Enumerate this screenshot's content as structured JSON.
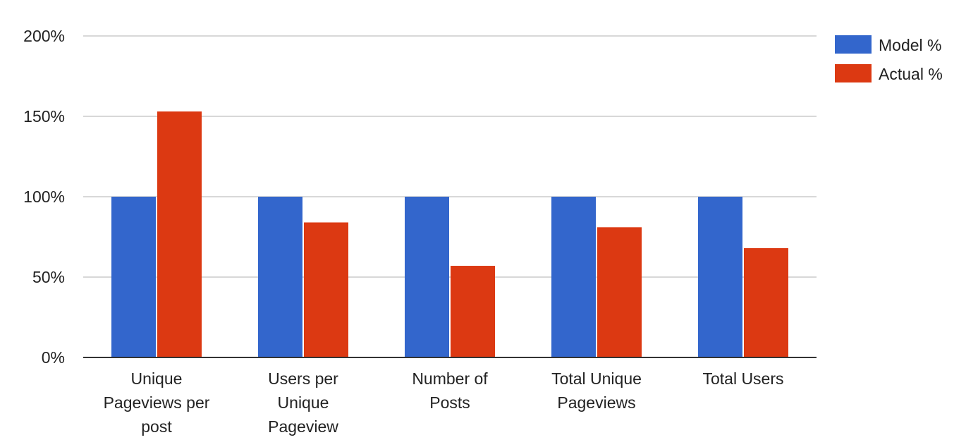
{
  "chart_data": {
    "type": "bar",
    "categories": [
      [
        "Unique",
        "Pageviews per",
        "post"
      ],
      [
        "Users per",
        "Unique",
        "Pageview"
      ],
      [
        "Number of",
        "Posts"
      ],
      [
        "Total Unique",
        "Pageviews"
      ],
      [
        "Total Users"
      ]
    ],
    "series": [
      {
        "name": "Model %",
        "color": "#3366cc",
        "values": [
          100,
          100,
          100,
          100,
          100
        ]
      },
      {
        "name": "Actual %",
        "color": "#dc3912",
        "values": [
          153,
          84,
          57,
          81,
          68
        ]
      }
    ],
    "y_ticks": [
      "0%",
      "50%",
      "100%",
      "150%",
      "200%"
    ],
    "y_tick_values": [
      0,
      50,
      100,
      150,
      200
    ],
    "ylim": [
      0,
      200
    ],
    "grid": true,
    "legend_position": "right"
  }
}
